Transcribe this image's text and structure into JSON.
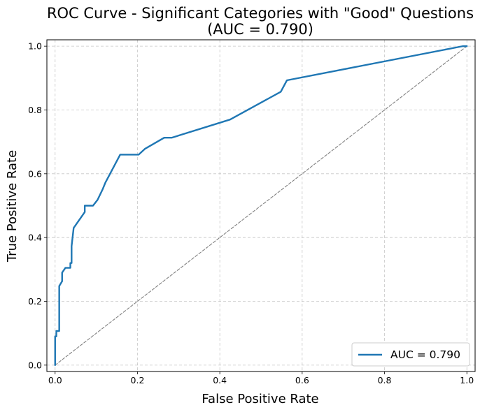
{
  "chart_data": {
    "type": "line",
    "title": "ROC Curve - Significant Categories with \"Good\" Questions",
    "subtitle": "(AUC = 0.790)",
    "xlabel": "False Positive Rate",
    "ylabel": "True Positive Rate",
    "xlim": [
      -0.02,
      1.02
    ],
    "ylim": [
      -0.02,
      1.02
    ],
    "x_ticks": [
      "0.0",
      "0.2",
      "0.4",
      "0.6",
      "0.8",
      "1.0"
    ],
    "y_ticks": [
      "0.0",
      "0.2",
      "0.4",
      "0.6",
      "0.8",
      "1.0"
    ],
    "grid": true,
    "legend_position": "bottom-right",
    "series": [
      {
        "name": "AUC = 0.790",
        "color": "#1f77b4",
        "style": "solid",
        "x": [
          0.0,
          0.0,
          0.003,
          0.003,
          0.01,
          0.01,
          0.017,
          0.017,
          0.025,
          0.037,
          0.037,
          0.04,
          0.04,
          0.045,
          0.072,
          0.072,
          0.092,
          0.103,
          0.103,
          0.115,
          0.122,
          0.158,
          0.203,
          0.218,
          0.265,
          0.283,
          0.425,
          0.548,
          0.563,
          0.99,
          1.0
        ],
        "y": [
          0.0,
          0.09,
          0.09,
          0.107,
          0.107,
          0.248,
          0.263,
          0.29,
          0.305,
          0.305,
          0.32,
          0.32,
          0.373,
          0.43,
          0.48,
          0.5,
          0.5,
          0.518,
          0.518,
          0.55,
          0.572,
          0.66,
          0.66,
          0.678,
          0.713,
          0.713,
          0.77,
          0.857,
          0.893,
          1.0,
          1.0
        ]
      },
      {
        "color": "#808080",
        "style": "dashed",
        "x": [
          0,
          1
        ],
        "y": [
          0,
          1
        ]
      }
    ]
  },
  "legend": {
    "label": "AUC = 0.790"
  }
}
